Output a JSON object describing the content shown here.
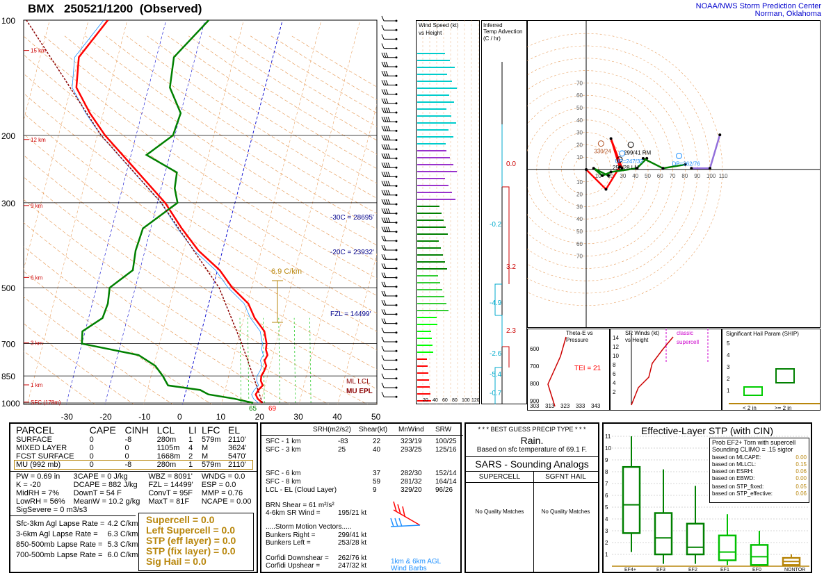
{
  "header": {
    "station": "BMX",
    "datetime": "250521/1200",
    "status": "(Observed)",
    "org_line1": "NOAA/NWS Storm Prediction Center",
    "org_line2": "Norman, Oklahoma"
  },
  "colors": {
    "temp": "#ff0000",
    "dewpoint": "#008000",
    "virtual": "#0000ff",
    "parcel": "#8b0000",
    "wetbulb": "#1e90ff",
    "gold": "#b8860b",
    "hodo_low": "#ff0000",
    "hodo_mid": "#008000",
    "hodo_high": "#9370db"
  },
  "skewt": {
    "pressure_labels": [
      "100",
      "200",
      "300",
      "500",
      "700",
      "850",
      "1000"
    ],
    "height_labels": [
      "15 km",
      "12 km",
      "9 km",
      "6 km",
      "3 km",
      "1 km",
      "SFC (178m)"
    ],
    "temp_ticks": [
      "-30",
      "-20",
      "-10",
      "0",
      "10",
      "20",
      "30",
      "40",
      "50"
    ],
    "lapse_label": "6.9 C/km",
    "isotherm_labels": [
      "-30C = 28695'",
      "-20C = 23932'",
      "FZL = 14499'"
    ],
    "legend": [
      "ML LCL",
      "MU EPL"
    ],
    "sfc_dew": "65",
    "sfc_temp": "69"
  },
  "chart_data": [
    {
      "type": "line",
      "title": "",
      "xlabel": "",
      "ylabel": "",
      "series": [
        {
          "name": "",
          "kind": "temperature",
          "values": [
            [
              1000,
              20.5
            ],
            [
              975,
              19
            ],
            [
              950,
              18.2
            ],
            [
              925,
              18.6
            ],
            [
              900,
              19.4
            ],
            [
              875,
              18.6
            ],
            [
              850,
              18.4
            ],
            [
              825,
              18.8
            ],
            [
              800,
              19
            ],
            [
              775,
              18.2
            ],
            [
              750,
              18.6
            ],
            [
              725,
              17.8
            ],
            [
              700,
              17.6
            ],
            [
              650,
              16.2
            ],
            [
              600,
              12.8
            ],
            [
              550,
              10.2
            ],
            [
              500,
              5
            ],
            [
              450,
              0.6
            ],
            [
              400,
              -6.2
            ],
            [
              350,
              -12
            ],
            [
              300,
              -18
            ],
            [
              250,
              -27
            ],
            [
              200,
              -38
            ],
            [
              175,
              -43.4
            ],
            [
              150,
              -48.6
            ],
            [
              125,
              -50
            ],
            [
              100,
              -45
            ]
          ]
        },
        {
          "name": "",
          "kind": "dewpoint",
          "values": [
            [
              1000,
              18.1
            ],
            [
              975,
              13
            ],
            [
              950,
              6
            ],
            [
              925,
              3.6
            ],
            [
              900,
              -5
            ],
            [
              850,
              -7
            ],
            [
              800,
              -9.6
            ],
            [
              750,
              -14.6
            ],
            [
              700,
              -30
            ],
            [
              650,
              -30.7
            ],
            [
              600,
              -26.4
            ],
            [
              550,
              -26
            ],
            [
              500,
              -26.6
            ],
            [
              450,
              -21.8
            ],
            [
              400,
              -22.4
            ],
            [
              350,
              -22
            ],
            [
              300,
              -14.8
            ],
            [
              275,
              -16.5
            ],
            [
              250,
              -17
            ],
            [
              225,
              -26
            ],
            [
              200,
              -20.5
            ],
            [
              175,
              -20
            ],
            [
              150,
              -24.5
            ],
            [
              125,
              -25.5
            ],
            [
              100,
              -19
            ]
          ]
        },
        {
          "name": "",
          "kind": "parcel",
          "values": [
            [
              1000,
              20.5
            ],
            [
              850,
              16.3
            ],
            [
              700,
              11.2
            ],
            [
              500,
              1.6
            ],
            [
              300,
              -19
            ],
            [
              200,
              -39
            ],
            [
              100,
              -66
            ]
          ]
        }
      ]
    },
    {
      "type": "hodograph",
      "title": "",
      "units": "kt",
      "rings_kt": [
        10,
        20,
        30,
        40,
        50,
        60,
        70,
        80,
        90,
        100,
        110
      ],
      "series": [
        {
          "name": "",
          "layer": "0-3 km",
          "color": "#ff0000",
          "points": [
            [
              0,
              0
            ],
            [
              -16,
              16
            ],
            [
              -27,
              -2
            ],
            [
              -20,
              -25
            ],
            [
              -29,
              -1
            ]
          ]
        },
        {
          "name": "",
          "layer": "3-6 km",
          "color": "#008000",
          "points": [
            [
              -18,
              5
            ],
            [
              -6,
              -1
            ],
            [
              -13,
              5
            ],
            [
              -20,
              2
            ],
            [
              -41,
              -1
            ],
            [
              -49,
              -9
            ]
          ]
        },
        {
          "name": "",
          "layer": "6-9 km",
          "color": "#008000",
          "points": [
            [
              -46,
              -9
            ],
            [
              -62,
              -1
            ],
            [
              -80,
              -4
            ]
          ]
        },
        {
          "name": "",
          "layer": "9-12 km",
          "color": "#9370db",
          "points": [
            [
              -85,
              -1
            ],
            [
              -100,
              -1
            ],
            [
              -108,
              -28
            ]
          ]
        }
      ],
      "markers": [
        {
          "label": "253/28 LM",
          "u": -27,
          "v": -8
        },
        {
          "label": "299/41 RM",
          "u": -36,
          "v": -20
        },
        {
          "label": "UP=247/32",
          "u": -29,
          "v": -13
        },
        {
          "label": "DP=262/76",
          "u": -75,
          "v": -11
        },
        {
          "label": "330/24",
          "u": -12,
          "v": -21
        }
      ]
    },
    {
      "type": "box",
      "title": "Effective-Layer STP (with CIN)",
      "categories": [
        "EF4+",
        "EF3",
        "EF2",
        "EF1",
        "EF0",
        "NONTOR"
      ],
      "series": [
        {
          "name": "",
          "min": [
            1.2,
            0.2,
            0.2,
            0.1,
            0.0,
            0.0
          ],
          "q1": [
            2.8,
            1.0,
            1.0,
            0.5,
            0.1,
            0.1
          ],
          "median": [
            5.2,
            2.4,
            1.6,
            1.2,
            0.8,
            0.4
          ],
          "q3": [
            8.4,
            4.5,
            3.6,
            2.6,
            1.8,
            0.7
          ],
          "max": [
            11.0,
            8.2,
            6.8,
            4.4,
            3.0,
            1.0
          ],
          "color": [
            "#008000",
            "#008000",
            "#008000",
            "#00c000",
            "#00c000",
            "#b8860b"
          ]
        }
      ],
      "ylim": [
        0,
        11
      ],
      "yticks": [
        "1",
        "2",
        "3",
        "4",
        "5",
        "6",
        "7",
        "8",
        "9",
        "10",
        "11"
      ]
    }
  ],
  "wind_panel": {
    "title1": "Wind Speed (kt)",
    "title2": "vs Height",
    "xticks": [
      "20",
      "40",
      "60",
      "80",
      "100",
      "120"
    ]
  },
  "adv_panel": {
    "title": "Inferred",
    "title2": "Temp Advection",
    "units": "(C / hr)",
    "values": [
      "0.0",
      "-0.2",
      "3.2",
      "-4.9",
      "2.3",
      "-2.6",
      "-5.4",
      "-0.7"
    ]
  },
  "hodo_ticks": [
    "10",
    "20",
    "30",
    "40",
    "50",
    "60",
    "70",
    "80",
    "90",
    "100",
    "110"
  ],
  "hodo_vticks": [
    "70",
    "60",
    "50",
    "40",
    "30",
    "20",
    "10",
    "10",
    "20",
    "30",
    "40",
    "50",
    "60",
    "70"
  ],
  "mini": {
    "thetae_title": "Theta-E vs",
    "thetae_title2": "Pressure",
    "tei": "TEI = 21",
    "thetae_x": [
      "303",
      "313",
      "323",
      "333",
      "343"
    ],
    "thetae_y": [
      "600",
      "700",
      "800",
      "900"
    ],
    "sr_title": "SR Winds (kt)",
    "sr_title2": "vs Height",
    "classic": "classic",
    "supercell": "supercell",
    "sr_y": [
      "14",
      "12",
      "10",
      "8",
      "6",
      "4",
      "2"
    ],
    "ship_title": "Significant Hail Param (SHIP)",
    "ship_y": [
      "5",
      "4",
      "3",
      "2",
      "1"
    ],
    "ship_cats": [
      "< 2 in",
      ">= 2 in"
    ]
  },
  "parcel_table": {
    "headers": [
      "PARCEL",
      "CAPE",
      "CINH",
      "LCL",
      "LI",
      "LFC",
      "EL"
    ],
    "rows": [
      [
        "SURFACE",
        "0",
        "-8",
        "280m",
        "1",
        "579m",
        "2110'"
      ],
      [
        "MIXED LAYER",
        "0",
        "0",
        "1105m",
        "4",
        "M",
        "3624'"
      ],
      [
        "FCST SURFACE",
        "0",
        "0",
        "1668m",
        "2",
        "M",
        "5470'"
      ],
      [
        "MU  (992 mb)",
        "0",
        "-8",
        "280m",
        "1",
        "579m",
        "2110'"
      ]
    ],
    "indices": [
      [
        "PW = 0.69 in",
        "3CAPE = 0 J/kg",
        "WBZ = 8091'",
        "WNDG = 0.0"
      ],
      [
        "K = -20",
        "DCAPE = 882 J/kg",
        "FZL = 14499'",
        "ESP = 0.0"
      ],
      [
        "MidRH = 7%",
        "DownT = 54 F",
        "ConvT = 95F",
        "MMP = 0.76"
      ],
      [
        "LowRH = 56%",
        "MeanW = 10.2 g/kg",
        "MaxT = 81F",
        "NCAPE = 0.00"
      ]
    ],
    "sigsevere": "SigSevere = 0 m3/s3",
    "lapse": [
      [
        "Sfc-3km Agl Lapse Rate =",
        "4.2 C/km"
      ],
      [
        "3-6km Agl Lapse Rate =",
        "6.3 C/km"
      ],
      [
        "850-500mb Lapse Rate =",
        "5.3 C/km"
      ],
      [
        "700-500mb Lapse Rate =",
        "6.0 C/km"
      ]
    ],
    "composites": [
      "Supercell = 0.0",
      "Left Supercell = 0.0",
      "STP (eff layer) = 0.0",
      "STP (fix layer) = 0.0",
      "Sig Hail = 0.0"
    ]
  },
  "kinematics": {
    "headers": [
      "SRH(m2/s2)",
      "Shear(kt)",
      "MnWind",
      "SRW"
    ],
    "rows": [
      [
        "SFC - 1 km",
        "-83",
        "22",
        "323/19",
        "100/25"
      ],
      [
        "SFC - 3 km",
        "25",
        "40",
        "293/25",
        "125/16"
      ],
      [
        "",
        "",
        "",
        "",
        ""
      ],
      [
        "SFC - 6 km",
        "",
        "37",
        "282/30",
        "152/14"
      ],
      [
        "SFC - 8 km",
        "",
        "59",
        "281/32",
        "164/14"
      ],
      [
        "LCL - EL (Cloud Layer)",
        "",
        "9",
        "329/20",
        "96/26"
      ]
    ],
    "brn": "BRN Shear = 61 m²/s²",
    "sr46": "4-6km SR Wind =",
    "sr46_val": "195/21 kt",
    "motion_title": ".....Storm Motion Vectors.....",
    "motion": [
      [
        "Bunkers Right =",
        "299/41 kt"
      ],
      [
        "Bunkers Left =",
        "253/28 kt"
      ],
      [
        "",
        ""
      ],
      [
        "Corfidi Downshear =",
        "262/76 kt"
      ],
      [
        "Corfidi Upshear =",
        "247/32 kt"
      ]
    ],
    "barb_label1": "1km & 6km AGL",
    "barb_label2": "Wind Barbs"
  },
  "precip": {
    "title": "* * * BEST GUESS PRECIP TYPE * * *",
    "type": "Rain.",
    "basis": "Based on sfc temperature of 69.1 F."
  },
  "sars": {
    "title": "SARS - Sounding Analogs",
    "col1": "SUPERCELL",
    "col2": "SGFNT HAIL",
    "none1": "No Quality Matches",
    "none2": "No Quality Matches"
  },
  "stp": {
    "prob_title1": "Prob EF2+ Torn with supercell",
    "prob_title2": "Sounding CLIMO = .15 sigtor",
    "rows": [
      [
        "based on MLCAPE:",
        "0.00"
      ],
      [
        "based on MLLCL:",
        "0.15"
      ],
      [
        "based on ESRH:",
        "0.06"
      ],
      [
        "based on EBWD:",
        "0.00"
      ],
      [
        "based on STP_fixed:",
        "0.05"
      ],
      [
        "based on STP_effective:",
        "0.06"
      ]
    ]
  }
}
